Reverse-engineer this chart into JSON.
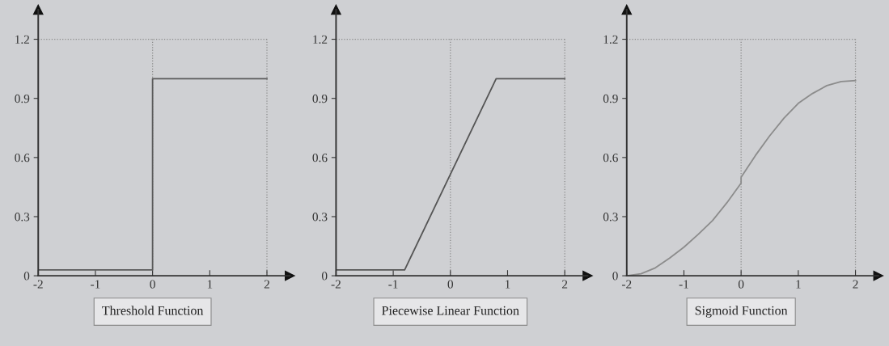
{
  "chart_data": [
    {
      "type": "line",
      "title": "Threshold Function",
      "x": [
        -2,
        0,
        0,
        2
      ],
      "series": [
        {
          "color": "#5a5a5a",
          "values": [
            0.03,
            0.03,
            1.0,
            1.0
          ]
        }
      ],
      "xlim": [
        -2,
        2.4
      ],
      "ylim": [
        0,
        1.35
      ],
      "xticks": [
        -2,
        -1,
        0,
        1,
        2
      ],
      "yticks": [
        0,
        0.3,
        0.6,
        0.9,
        1.2
      ],
      "ref_lines": [
        {
          "axis": "x",
          "value": 0,
          "color": "#8a8a8a",
          "line_style": "dotted"
        },
        {
          "axis": "x",
          "value": 2,
          "color": "#8a8a8a",
          "line_style": "dotted"
        },
        {
          "axis": "y",
          "value": 1.2,
          "color": "#8a8a8a",
          "line_style": "dotted"
        }
      ],
      "grid": false,
      "legend": false
    },
    {
      "type": "line",
      "title": "Piecewise Linear Function",
      "x": [
        -2,
        -0.8,
        0.8,
        2
      ],
      "series": [
        {
          "color": "#555555",
          "values": [
            0.03,
            0.03,
            1.0,
            1.0
          ]
        }
      ],
      "xlim": [
        -2,
        2.4
      ],
      "ylim": [
        0,
        1.35
      ],
      "xticks": [
        -2,
        -1,
        0,
        1,
        2
      ],
      "yticks": [
        0,
        0.3,
        0.6,
        0.9,
        1.2
      ],
      "ref_lines": [
        {
          "axis": "x",
          "value": 0,
          "color": "#8a8a8a",
          "line_style": "dotted"
        },
        {
          "axis": "x",
          "value": 2,
          "color": "#8a8a8a",
          "line_style": "dotted"
        },
        {
          "axis": "y",
          "value": 1.2,
          "color": "#8a8a8a",
          "line_style": "dotted"
        }
      ],
      "grid": false,
      "legend": false
    },
    {
      "type": "line",
      "title": "Sigmoid Function",
      "x": [
        -2,
        -1.75,
        -1.5,
        -1.25,
        -1,
        -0.75,
        -0.5,
        -0.25,
        0,
        0,
        0.25,
        0.5,
        0.75,
        1,
        1.25,
        1.5,
        1.75,
        2
      ],
      "series": [
        {
          "color": "#8c8c8c",
          "values": [
            0,
            0.01,
            0.04,
            0.09,
            0.145,
            0.21,
            0.28,
            0.37,
            0.47,
            0.5,
            0.61,
            0.71,
            0.8,
            0.875,
            0.925,
            0.965,
            0.985,
            0.99
          ]
        }
      ],
      "xlim": [
        -2,
        2.4
      ],
      "ylim": [
        0,
        1.35
      ],
      "xticks": [
        -2,
        -1,
        0,
        1,
        2
      ],
      "yticks": [
        0,
        0.3,
        0.6,
        0.9,
        1.2
      ],
      "ref_lines": [
        {
          "axis": "x",
          "value": 0,
          "color": "#8a8a8a",
          "line_style": "dotted"
        },
        {
          "axis": "x",
          "value": 2,
          "color": "#8a8a8a",
          "line_style": "dotted"
        },
        {
          "axis": "y",
          "value": 1.2,
          "color": "#8a8a8a",
          "line_style": "dotted"
        }
      ],
      "grid": false,
      "legend": false
    }
  ]
}
